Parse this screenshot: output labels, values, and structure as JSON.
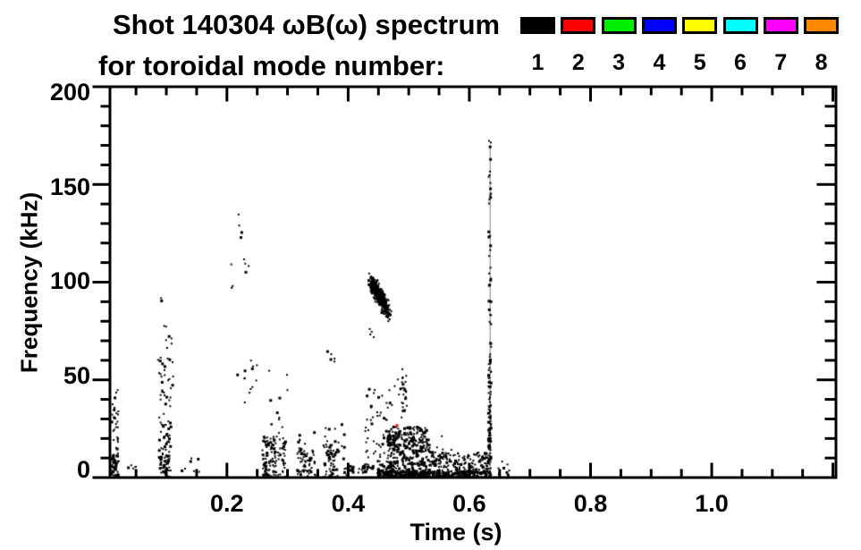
{
  "title": {
    "line1": "Shot 140304 ωB(ω) spectrum",
    "line2": "for toroidal mode number:"
  },
  "legend": {
    "modes": [
      {
        "label": "1",
        "color": "#000000"
      },
      {
        "label": "2",
        "color": "#ff0000"
      },
      {
        "label": "3",
        "color": "#00ee00"
      },
      {
        "label": "4",
        "color": "#0000ff"
      },
      {
        "label": "5",
        "color": "#ffff00"
      },
      {
        "label": "6",
        "color": "#00ffff"
      },
      {
        "label": "7",
        "color": "#ff00ff"
      },
      {
        "label": "8",
        "color": "#ff8800"
      }
    ]
  },
  "axes": {
    "x": {
      "label": "Time (s)",
      "tick_labels": [
        "0.2",
        "0.4",
        "0.6",
        "0.8",
        "1.0"
      ],
      "tick_values": [
        0.2,
        0.4,
        0.6,
        0.8,
        1.0
      ],
      "minor_step": 0.05,
      "min": 0.007,
      "max": 1.205
    },
    "y": {
      "label": "Frequency (kHz)",
      "tick_labels": [
        "0",
        "50",
        "100",
        "150",
        "200"
      ],
      "tick_values": [
        0,
        50,
        100,
        150,
        200
      ],
      "minor_step": 10,
      "min": 0,
      "max": 200
    }
  },
  "chart_data": {
    "type": "scatter",
    "title": "Shot 140304 ωB(ω) spectrum for toroidal mode number: 1-8",
    "xlabel": "Time (s)",
    "ylabel": "Frequency (kHz)",
    "xlim": [
      0.007,
      1.205
    ],
    "ylim": [
      0,
      200
    ],
    "grid": false,
    "legend_position": "top-right",
    "legend_entries": [
      "1",
      "2",
      "3",
      "4",
      "5",
      "6",
      "7",
      "8"
    ],
    "note": "Nearly all detected mode activity is toroidal mode n=1 (black). One isolated n=2 (red) point near t=0.481 s, f=27 kHz. No data beyond t≈0.67 s.",
    "point_color_default": "#000000",
    "clusters": [
      {
        "type": "rect",
        "t": [
          0.008,
          0.022
        ],
        "f": [
          0,
          13
        ],
        "n": 55
      },
      {
        "type": "rect",
        "t": [
          0.01,
          0.021
        ],
        "f": [
          13,
          45
        ],
        "n": 26
      },
      {
        "type": "rect",
        "t": [
          0.035,
          0.05
        ],
        "f": [
          3,
          9
        ],
        "n": 5
      },
      {
        "type": "rect",
        "t": [
          0.088,
          0.108
        ],
        "f": [
          0,
          44
        ],
        "n": 60
      },
      {
        "type": "rect",
        "t": [
          0.09,
          0.105
        ],
        "f": [
          0,
          12
        ],
        "n": 25
      },
      {
        "type": "rect",
        "t": [
          0.086,
          0.112
        ],
        "f": [
          44,
          62
        ],
        "n": 20
      },
      {
        "type": "rect",
        "t": [
          0.09,
          0.112
        ],
        "f": [
          62,
          93
        ],
        "n": 9
      },
      {
        "type": "rect",
        "t": [
          0.125,
          0.155
        ],
        "f": [
          2,
          10
        ],
        "n": 7
      },
      {
        "type": "rect",
        "t": [
          0.205,
          0.242
        ],
        "f": [
          96,
          140
        ],
        "n": 11
      },
      {
        "type": "rect",
        "t": [
          0.208,
          0.252
        ],
        "f": [
          38,
          62
        ],
        "n": 13
      },
      {
        "type": "rect",
        "t": [
          0.258,
          0.297
        ],
        "f": [
          0,
          21
        ],
        "n": 120
      },
      {
        "type": "rect",
        "t": [
          0.262,
          0.3
        ],
        "f": [
          21,
          55
        ],
        "n": 12
      },
      {
        "type": "rect",
        "t": [
          0.315,
          0.347
        ],
        "f": [
          0,
          14
        ],
        "n": 60
      },
      {
        "type": "rect",
        "t": [
          0.318,
          0.345
        ],
        "f": [
          14,
          26
        ],
        "n": 8
      },
      {
        "type": "rect",
        "t": [
          0.358,
          0.398
        ],
        "f": [
          0,
          17
        ],
        "n": 65
      },
      {
        "type": "rect",
        "t": [
          0.362,
          0.396
        ],
        "f": [
          17,
          30
        ],
        "n": 9
      },
      {
        "type": "rect",
        "t": [
          0.366,
          0.378
        ],
        "f": [
          58,
          67
        ],
        "n": 5
      },
      {
        "type": "diag",
        "from": [
          0.437,
          101
        ],
        "to": [
          0.468,
          84
        ],
        "st": 0.0045,
        "sf": 5.5,
        "n": 320
      },
      {
        "type": "rect",
        "t": [
          0.435,
          0.448
        ],
        "f": [
          71,
          79
        ],
        "n": 4
      },
      {
        "type": "rect",
        "t": [
          0.402,
          0.47
        ],
        "f": [
          2,
          6
        ],
        "n": 55
      },
      {
        "type": "rect",
        "t": [
          0.425,
          0.475
        ],
        "f": [
          6,
          30
        ],
        "n": 50
      },
      {
        "type": "rect",
        "t": [
          0.43,
          0.5
        ],
        "f": [
          30,
          52
        ],
        "n": 28
      },
      {
        "type": "rect",
        "t": [
          0.488,
          0.497
        ],
        "f": [
          30,
          56
        ],
        "n": 18
      },
      {
        "type": "rect",
        "t": [
          0.465,
          0.535
        ],
        "f": [
          0,
          26
        ],
        "n": 380
      },
      {
        "type": "rect",
        "t": [
          0.535,
          0.635
        ],
        "f": [
          0,
          13
        ],
        "n": 210
      },
      {
        "type": "rect",
        "t": [
          0.45,
          0.635
        ],
        "f": [
          0,
          3.5
        ],
        "n": 280
      },
      {
        "type": "rect",
        "t": [
          0.52,
          0.58
        ],
        "f": [
          13,
          22
        ],
        "n": 10
      },
      {
        "type": "vline",
        "t": 0.6335,
        "f": [
          2,
          170
        ],
        "color": "#909090"
      },
      {
        "type": "rect",
        "t": [
          0.6315,
          0.636
        ],
        "f": [
          0,
          62
        ],
        "n": 95
      },
      {
        "type": "rect",
        "t": [
          0.632,
          0.636
        ],
        "f": [
          62,
          92
        ],
        "n": 12
      },
      {
        "type": "rect",
        "t": [
          0.632,
          0.636
        ],
        "f": [
          95,
          131
        ],
        "n": 14
      },
      {
        "type": "rect",
        "t": [
          0.632,
          0.636
        ],
        "f": [
          140,
          174
        ],
        "n": 14
      },
      {
        "type": "rect",
        "t": [
          0.645,
          0.668
        ],
        "f": [
          0,
          9
        ],
        "n": 9
      },
      {
        "type": "rect",
        "t": [
          0.4805,
          0.4815
        ],
        "f": [
          26.5,
          27.5
        ],
        "n": 1,
        "color": "#ff0000",
        "s": 3
      }
    ]
  }
}
